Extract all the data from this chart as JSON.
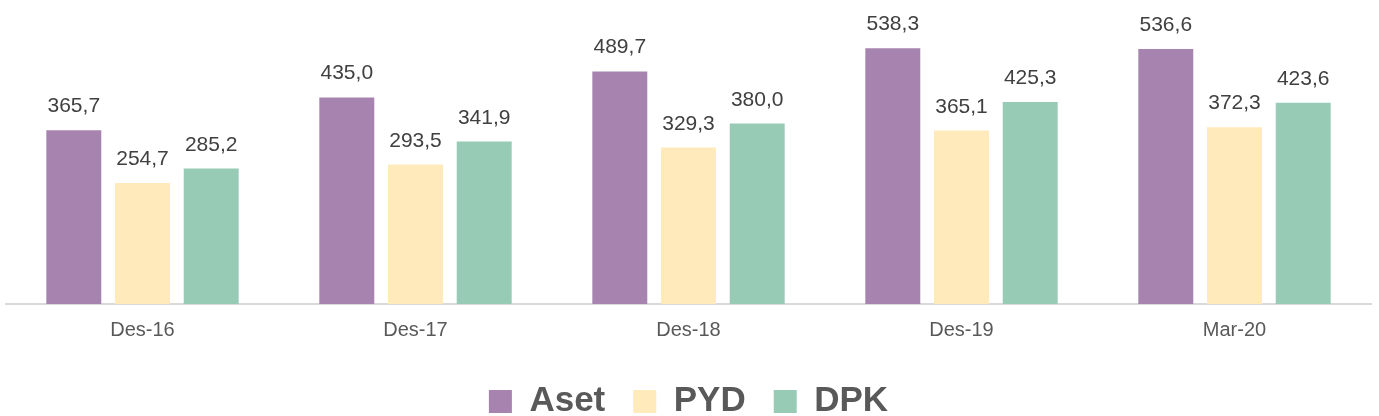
{
  "chart_data": {
    "type": "bar",
    "categories": [
      "Des-16",
      "Des-17",
      "Des-18",
      "Des-19",
      "Mar-20"
    ],
    "series": [
      {
        "name": "Aset",
        "color": "#a783b0",
        "values": [
          365.7,
          435.0,
          489.7,
          538.3,
          536.6
        ],
        "value_labels": [
          "365,7",
          "435,0",
          "489,7",
          "538,3",
          "536,6"
        ]
      },
      {
        "name": "PYD",
        "color": "#ffeabb",
        "values": [
          254.7,
          293.5,
          329.3,
          365.1,
          372.3
        ],
        "value_labels": [
          "254,7",
          "293,5",
          "329,3",
          "365,1",
          "372,3"
        ]
      },
      {
        "name": "DPK",
        "color": "#97cbb6",
        "values": [
          285.2,
          341.9,
          380.0,
          425.3,
          423.6
        ],
        "value_labels": [
          "285,2",
          "341,9",
          "380,0",
          "425,3",
          "423,6"
        ]
      }
    ],
    "tick_labels": "x",
    "grid": false,
    "legend": "bottom"
  }
}
